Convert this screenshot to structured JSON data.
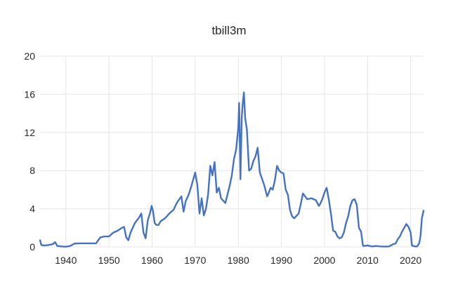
{
  "chart_data": {
    "type": "line",
    "title": "tbill3m",
    "xlabel": "",
    "ylabel": "",
    "xlim": [
      1934,
      2023
    ],
    "ylim": [
      0,
      20
    ],
    "x_ticks": [
      1940,
      1950,
      1960,
      1970,
      1980,
      1990,
      2000,
      2010,
      2020
    ],
    "y_ticks": [
      0,
      4,
      8,
      12,
      16,
      20
    ],
    "grid": {
      "x": true,
      "y": true
    },
    "legend": "none",
    "series": [
      {
        "color": "#4472c4",
        "points": [
          [
            1934.0,
            0.7
          ],
          [
            1934.3,
            0.2
          ],
          [
            1935.0,
            0.15
          ],
          [
            1936.0,
            0.2
          ],
          [
            1937.0,
            0.3
          ],
          [
            1937.5,
            0.5
          ],
          [
            1938.0,
            0.1
          ],
          [
            1939.0,
            0.05
          ],
          [
            1940.0,
            0.02
          ],
          [
            1941.0,
            0.1
          ],
          [
            1942.0,
            0.35
          ],
          [
            1943.0,
            0.375
          ],
          [
            1945.0,
            0.375
          ],
          [
            1947.0,
            0.375
          ],
          [
            1947.5,
            0.7
          ],
          [
            1948.0,
            1.0
          ],
          [
            1949.0,
            1.1
          ],
          [
            1950.0,
            1.1
          ],
          [
            1950.5,
            1.3
          ],
          [
            1951.0,
            1.5
          ],
          [
            1952.0,
            1.7
          ],
          [
            1953.0,
            2.0
          ],
          [
            1953.5,
            2.1
          ],
          [
            1954.0,
            1.0
          ],
          [
            1954.5,
            0.7
          ],
          [
            1955.0,
            1.5
          ],
          [
            1955.5,
            2.0
          ],
          [
            1956.0,
            2.5
          ],
          [
            1956.5,
            2.8
          ],
          [
            1957.0,
            3.1
          ],
          [
            1957.5,
            3.5
          ],
          [
            1958.0,
            1.5
          ],
          [
            1958.5,
            0.9
          ],
          [
            1959.0,
            2.8
          ],
          [
            1959.5,
            3.5
          ],
          [
            1959.9,
            4.3
          ],
          [
            1960.2,
            3.8
          ],
          [
            1960.6,
            2.5
          ],
          [
            1961.0,
            2.3
          ],
          [
            1961.5,
            2.3
          ],
          [
            1962.0,
            2.7
          ],
          [
            1963.0,
            3.0
          ],
          [
            1964.0,
            3.5
          ],
          [
            1965.0,
            3.9
          ],
          [
            1965.5,
            4.4
          ],
          [
            1966.0,
            4.8
          ],
          [
            1966.8,
            5.3
          ],
          [
            1967.3,
            3.7
          ],
          [
            1967.8,
            4.8
          ],
          [
            1968.5,
            5.5
          ],
          [
            1969.0,
            6.2
          ],
          [
            1969.5,
            7.0
          ],
          [
            1970.0,
            7.8
          ],
          [
            1970.5,
            6.5
          ],
          [
            1971.0,
            3.5
          ],
          [
            1971.5,
            5.1
          ],
          [
            1972.0,
            3.3
          ],
          [
            1972.5,
            4.0
          ],
          [
            1973.0,
            5.5
          ],
          [
            1973.5,
            8.5
          ],
          [
            1974.0,
            7.5
          ],
          [
            1974.5,
            8.9
          ],
          [
            1975.0,
            5.7
          ],
          [
            1975.5,
            6.2
          ],
          [
            1976.0,
            5.1
          ],
          [
            1977.0,
            4.6
          ],
          [
            1977.5,
            5.5
          ],
          [
            1978.0,
            6.4
          ],
          [
            1978.5,
            7.5
          ],
          [
            1979.0,
            9.2
          ],
          [
            1979.5,
            10.2
          ],
          [
            1980.0,
            12.5
          ],
          [
            1980.2,
            15.1
          ],
          [
            1980.5,
            7.1
          ],
          [
            1980.8,
            13.5
          ],
          [
            1981.0,
            14.9
          ],
          [
            1981.3,
            16.2
          ],
          [
            1981.6,
            13.5
          ],
          [
            1982.0,
            12.3
          ],
          [
            1982.5,
            8.0
          ],
          [
            1983.0,
            8.2
          ],
          [
            1983.5,
            9.0
          ],
          [
            1984.0,
            9.5
          ],
          [
            1984.5,
            10.4
          ],
          [
            1985.0,
            7.8
          ],
          [
            1986.0,
            6.5
          ],
          [
            1986.7,
            5.3
          ],
          [
            1987.0,
            5.6
          ],
          [
            1987.5,
            6.2
          ],
          [
            1988.0,
            6.0
          ],
          [
            1988.5,
            7.0
          ],
          [
            1989.0,
            8.5
          ],
          [
            1989.5,
            8.0
          ],
          [
            1990.0,
            7.8
          ],
          [
            1990.5,
            7.7
          ],
          [
            1991.0,
            6.0
          ],
          [
            1991.5,
            5.5
          ],
          [
            1992.0,
            3.9
          ],
          [
            1992.5,
            3.2
          ],
          [
            1993.0,
            3.0
          ],
          [
            1994.0,
            3.5
          ],
          [
            1994.5,
            4.5
          ],
          [
            1995.0,
            5.6
          ],
          [
            1996.0,
            5.0
          ],
          [
            1997.0,
            5.1
          ],
          [
            1998.0,
            4.9
          ],
          [
            1998.7,
            4.3
          ],
          [
            1999.0,
            4.5
          ],
          [
            1999.5,
            5.0
          ],
          [
            2000.0,
            5.7
          ],
          [
            2000.5,
            6.2
          ],
          [
            2001.0,
            5.0
          ],
          [
            2001.5,
            3.5
          ],
          [
            2002.0,
            1.7
          ],
          [
            2002.5,
            1.6
          ],
          [
            2003.0,
            1.1
          ],
          [
            2003.5,
            0.9
          ],
          [
            2004.0,
            1.0
          ],
          [
            2004.5,
            1.5
          ],
          [
            2005.0,
            2.5
          ],
          [
            2005.5,
            3.2
          ],
          [
            2006.0,
            4.3
          ],
          [
            2006.5,
            4.9
          ],
          [
            2007.0,
            5.0
          ],
          [
            2007.5,
            4.4
          ],
          [
            2008.0,
            2.0
          ],
          [
            2008.5,
            1.6
          ],
          [
            2008.9,
            0.2
          ],
          [
            2009.0,
            0.1
          ],
          [
            2010.0,
            0.15
          ],
          [
            2011.0,
            0.05
          ],
          [
            2012.0,
            0.1
          ],
          [
            2013.0,
            0.05
          ],
          [
            2014.0,
            0.03
          ],
          [
            2015.0,
            0.05
          ],
          [
            2016.0,
            0.3
          ],
          [
            2016.5,
            0.35
          ],
          [
            2017.0,
            0.8
          ],
          [
            2017.5,
            1.1
          ],
          [
            2018.0,
            1.6
          ],
          [
            2018.5,
            2.0
          ],
          [
            2019.0,
            2.4
          ],
          [
            2019.5,
            2.1
          ],
          [
            2020.0,
            1.5
          ],
          [
            2020.3,
            0.15
          ],
          [
            2021.0,
            0.05
          ],
          [
            2021.5,
            0.05
          ],
          [
            2022.0,
            0.4
          ],
          [
            2022.3,
            1.2
          ],
          [
            2022.6,
            3.0
          ],
          [
            2023.0,
            3.8
          ]
        ]
      }
    ]
  }
}
